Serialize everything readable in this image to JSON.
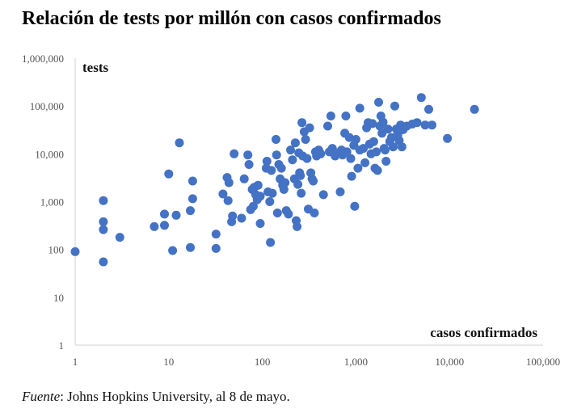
{
  "title": "Relación de tests por millón con casos confirmados",
  "source": {
    "label": "Fuente",
    "text": ": Johns Hopkins University, al 8 de mayo."
  },
  "chart_data": {
    "type": "scatter",
    "title": "Relación de tests por millón con casos confirmados",
    "xlabel": "casos confirmados",
    "ylabel": "tests",
    "x_scale": "log",
    "y_scale": "log",
    "xlim": [
      1,
      100000
    ],
    "ylim": [
      1,
      1000000
    ],
    "x_ticks": [
      "1",
      "10",
      "100",
      "1,000",
      "10,000",
      "100,000"
    ],
    "y_ticks": [
      "1",
      "10",
      "100",
      "1,000",
      "10,000",
      "100,000",
      "1,000,000"
    ],
    "grid": false,
    "color": "#4472C4",
    "points": [
      [
        1,
        90
      ],
      [
        2,
        1050
      ],
      [
        2,
        380
      ],
      [
        2,
        260
      ],
      [
        2,
        55
      ],
      [
        3,
        180
      ],
      [
        7,
        300
      ],
      [
        9,
        320
      ],
      [
        9,
        550
      ],
      [
        10,
        3800
      ],
      [
        11,
        95
      ],
      [
        12,
        520
      ],
      [
        13,
        17000
      ],
      [
        17,
        650
      ],
      [
        17,
        110
      ],
      [
        18,
        1150
      ],
      [
        18,
        2700
      ],
      [
        32,
        210
      ],
      [
        32,
        105
      ],
      [
        38,
        1450
      ],
      [
        42,
        3200
      ],
      [
        43,
        1050
      ],
      [
        44,
        2500
      ],
      [
        47,
        380
      ],
      [
        48,
        500
      ],
      [
        50,
        10000
      ],
      [
        60,
        450
      ],
      [
        64,
        3000
      ],
      [
        70,
        9500
      ],
      [
        72,
        6000
      ],
      [
        75,
        680
      ],
      [
        78,
        1800
      ],
      [
        80,
        800
      ],
      [
        82,
        2000
      ],
      [
        85,
        1400
      ],
      [
        88,
        1100
      ],
      [
        90,
        2200
      ],
      [
        95,
        1300
      ],
      [
        95,
        350
      ],
      [
        110,
        5000
      ],
      [
        112,
        7000
      ],
      [
        115,
        1600
      ],
      [
        120,
        1000
      ],
      [
        122,
        140
      ],
      [
        125,
        4500
      ],
      [
        128,
        1500
      ],
      [
        140,
        20000
      ],
      [
        142,
        9500
      ],
      [
        145,
        580
      ],
      [
        150,
        6000
      ],
      [
        155,
        3000
      ],
      [
        160,
        5000
      ],
      [
        165,
        2200
      ],
      [
        170,
        1800
      ],
      [
        175,
        2500
      ],
      [
        180,
        650
      ],
      [
        190,
        550
      ],
      [
        200,
        12000
      ],
      [
        210,
        7500
      ],
      [
        220,
        3000
      ],
      [
        225,
        17000
      ],
      [
        230,
        400
      ],
      [
        235,
        300
      ],
      [
        240,
        2300
      ],
      [
        245,
        10500
      ],
      [
        250,
        4000
      ],
      [
        255,
        3500
      ],
      [
        260,
        1500
      ],
      [
        265,
        45000
      ],
      [
        270,
        9000
      ],
      [
        280,
        29000
      ],
      [
        290,
        20000
      ],
      [
        300,
        8000
      ],
      [
        310,
        700
      ],
      [
        320,
        35000
      ],
      [
        330,
        4000
      ],
      [
        340,
        3000
      ],
      [
        350,
        2700
      ],
      [
        360,
        580
      ],
      [
        370,
        11000
      ],
      [
        380,
        9000
      ],
      [
        400,
        12000
      ],
      [
        420,
        10000
      ],
      [
        450,
        1400
      ],
      [
        500,
        38000
      ],
      [
        520,
        11000
      ],
      [
        540,
        62000
      ],
      [
        560,
        13000
      ],
      [
        600,
        9000
      ],
      [
        650,
        10500
      ],
      [
        680,
        1600
      ],
      [
        700,
        12000
      ],
      [
        720,
        9500
      ],
      [
        760,
        27000
      ],
      [
        780,
        62000
      ],
      [
        800,
        11000
      ],
      [
        850,
        22000
      ],
      [
        880,
        8000
      ],
      [
        900,
        3400
      ],
      [
        950,
        15000
      ],
      [
        970,
        800
      ],
      [
        1000,
        20000
      ],
      [
        1050,
        5000
      ],
      [
        1100,
        12000
      ],
      [
        1100,
        90000
      ],
      [
        1200,
        13000
      ],
      [
        1250,
        6500
      ],
      [
        1300,
        35000
      ],
      [
        1350,
        45000
      ],
      [
        1400,
        16000
      ],
      [
        1450,
        10000
      ],
      [
        1500,
        43000
      ],
      [
        1550,
        18000
      ],
      [
        1600,
        5000
      ],
      [
        1650,
        11000
      ],
      [
        1700,
        4500
      ],
      [
        1750,
        120000
      ],
      [
        1800,
        38000
      ],
      [
        1850,
        62000
      ],
      [
        1900,
        27000
      ],
      [
        1950,
        46000
      ],
      [
        2000,
        13000
      ],
      [
        2050,
        12000
      ],
      [
        2100,
        7000
      ],
      [
        2200,
        33000
      ],
      [
        2300,
        18000
      ],
      [
        2400,
        22000
      ],
      [
        2500,
        14000
      ],
      [
        2600,
        100000
      ],
      [
        2700,
        33000
      ],
      [
        2800,
        25000
      ],
      [
        2900,
        19000
      ],
      [
        3000,
        40000
      ],
      [
        3100,
        14000
      ],
      [
        3200,
        32000
      ],
      [
        3500,
        38000
      ],
      [
        4000,
        42000
      ],
      [
        4500,
        45000
      ],
      [
        5000,
        150000
      ],
      [
        5500,
        40000
      ],
      [
        6000,
        85000
      ],
      [
        6500,
        40000
      ],
      [
        9500,
        21000
      ],
      [
        18500,
        85000
      ]
    ]
  }
}
